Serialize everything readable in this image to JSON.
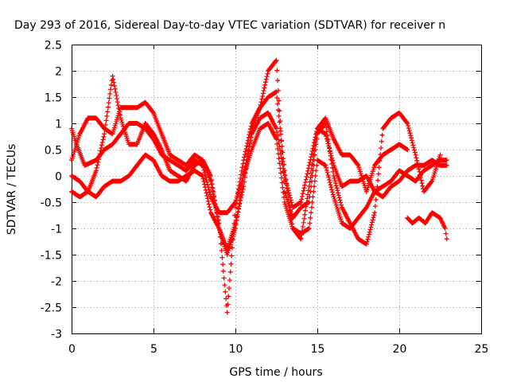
{
  "chart_data": {
    "type": "scatter",
    "title": "Day 293 of 2016, Sidereal Day-to-day VTEC variation (SDTVAR) for receiver n",
    "xlabel": "GPS time / hours",
    "ylabel": "SDTVAR / TECUs",
    "xlim": [
      0,
      25
    ],
    "ylim": [
      -3,
      2.5
    ],
    "xticks": [
      "0",
      "5",
      "10",
      "15",
      "20",
      "25"
    ],
    "yticks": [
      "2.5",
      "2",
      "1.5",
      "1",
      "0.5",
      "0",
      "-0.5",
      "-1",
      "-1.5",
      "-2",
      "-2.5",
      "-3"
    ],
    "grid": true,
    "marker": "+",
    "color": "#ff0000",
    "series": [
      {
        "name": "trace-1",
        "points": [
          [
            0,
            0.9
          ],
          [
            0.3,
            0.6
          ],
          [
            0.8,
            0.2
          ],
          [
            1.5,
            0.3
          ],
          [
            2,
            0.5
          ],
          [
            2.5,
            0.6
          ],
          [
            3,
            0.8
          ],
          [
            3.5,
            1.0
          ],
          [
            4,
            1.0
          ],
          [
            4.5,
            0.9
          ],
          [
            5,
            0.7
          ],
          [
            5.5,
            0.4
          ],
          [
            6,
            0.3
          ],
          [
            6.5,
            0.2
          ],
          [
            7,
            0.1
          ],
          [
            7.5,
            0.3
          ],
          [
            8,
            0.2
          ],
          [
            8.5,
            -0.4
          ],
          [
            9,
            -0.7
          ],
          [
            9.5,
            -0.7
          ],
          [
            10,
            -0.5
          ],
          [
            10.5,
            0.0
          ],
          [
            11,
            0.8
          ],
          [
            11.5,
            1.1
          ],
          [
            12,
            1.2
          ],
          [
            12.5,
            0.9
          ],
          [
            13,
            0.0
          ],
          [
            13.5,
            -0.6
          ],
          [
            14,
            -0.5
          ],
          [
            14.5,
            0.2
          ],
          [
            15,
            0.9
          ],
          [
            15.5,
            0.8
          ],
          [
            16,
            0.2
          ],
          [
            16.5,
            -0.2
          ],
          [
            17,
            -0.1
          ],
          [
            17.5,
            -0.1
          ],
          [
            18,
            0.0
          ],
          [
            18.5,
            -0.3
          ],
          [
            19,
            -0.2
          ],
          [
            19.5,
            -0.1
          ],
          [
            20,
            0.1
          ],
          [
            20.5,
            0.0
          ],
          [
            21,
            -0.1
          ],
          [
            21.5,
            0.1
          ],
          [
            22,
            0.2
          ],
          [
            22.5,
            0.3
          ],
          [
            22.9,
            0.3
          ]
        ]
      },
      {
        "name": "trace-2",
        "points": [
          [
            0,
            0.3
          ],
          [
            0.5,
            0.8
          ],
          [
            1,
            1.1
          ],
          [
            1.5,
            1.1
          ],
          [
            2,
            0.9
          ],
          [
            2.5,
            0.8
          ],
          [
            3,
            1.3
          ],
          [
            3.5,
            1.3
          ],
          [
            4,
            1.3
          ],
          [
            4.5,
            1.4
          ],
          [
            5,
            1.2
          ],
          [
            5.5,
            0.8
          ],
          [
            6,
            0.4
          ],
          [
            6.5,
            0.3
          ],
          [
            7,
            0.2
          ],
          [
            7.5,
            0.4
          ],
          [
            8,
            0.3
          ],
          [
            8.5,
            0.0
          ],
          [
            9,
            -1.0
          ],
          [
            9.5,
            -1.4
          ],
          [
            10,
            -0.9
          ],
          [
            10.5,
            -0.2
          ],
          [
            11,
            0.9
          ],
          [
            11.5,
            1.3
          ],
          [
            12,
            1.5
          ],
          [
            12.5,
            1.6
          ],
          [
            13,
            0.1
          ],
          [
            13.5,
            -1.0
          ],
          [
            14,
            -1.2
          ],
          [
            14.5,
            -0.2
          ],
          [
            15,
            0.9
          ],
          [
            15.5,
            1.1
          ],
          [
            16,
            0.7
          ],
          [
            16.5,
            0.4
          ],
          [
            17,
            0.4
          ],
          [
            17.5,
            0.2
          ],
          [
            18,
            -0.3
          ],
          [
            18.5,
            0.2
          ],
          [
            19,
            0.4
          ],
          [
            19.5,
            0.5
          ],
          [
            20,
            0.6
          ],
          [
            20.5,
            0.5
          ]
        ]
      },
      {
        "name": "trace-3",
        "points": [
          [
            0,
            -0.3
          ],
          [
            0.5,
            -0.4
          ],
          [
            1,
            -0.3
          ],
          [
            1.5,
            0.1
          ],
          [
            2,
            0.8
          ],
          [
            2.5,
            1.9
          ],
          [
            3,
            1.1
          ],
          [
            3.5,
            0.6
          ],
          [
            4,
            0.6
          ],
          [
            4.5,
            1.0
          ],
          [
            5,
            0.8
          ],
          [
            5.5,
            0.5
          ],
          [
            6,
            0.1
          ],
          [
            6.5,
            0.0
          ],
          [
            7,
            -0.1
          ],
          [
            7.5,
            0.2
          ],
          [
            8,
            0.3
          ],
          [
            8.5,
            -0.1
          ],
          [
            9,
            -0.9
          ],
          [
            9.5,
            -2.6
          ],
          [
            10,
            -0.6
          ],
          [
            10.5,
            0.3
          ],
          [
            11,
            1.0
          ],
          [
            11.5,
            1.3
          ],
          [
            12,
            2.0
          ],
          [
            12.5,
            2.2
          ],
          [
            13,
            -0.3
          ],
          [
            13.5,
            -0.8
          ],
          [
            14,
            -0.6
          ],
          [
            14.5,
            -0.5
          ],
          [
            15,
            0.8
          ],
          [
            15.5,
            1.0
          ],
          [
            16,
            0.0
          ],
          [
            16.5,
            -0.6
          ],
          [
            17,
            -0.9
          ],
          [
            17.5,
            -1.2
          ],
          [
            18,
            -1.3
          ],
          [
            18.5,
            -0.7
          ],
          [
            19,
            0.9
          ],
          [
            19.5,
            1.1
          ],
          [
            20,
            1.2
          ],
          [
            20.5,
            1.0
          ],
          [
            21,
            0.4
          ],
          [
            21.5,
            -0.3
          ],
          [
            22,
            -0.1
          ],
          [
            22.5,
            0.4
          ]
        ]
      },
      {
        "name": "trace-4",
        "points": [
          [
            0,
            0.0
          ],
          [
            0.5,
            -0.1
          ],
          [
            1,
            -0.3
          ],
          [
            1.5,
            -0.4
          ],
          [
            2,
            -0.2
          ],
          [
            2.5,
            -0.1
          ],
          [
            3,
            -0.1
          ],
          [
            3.5,
            0.0
          ],
          [
            4,
            0.2
          ],
          [
            4.5,
            0.4
          ],
          [
            5,
            0.3
          ],
          [
            5.5,
            0.0
          ],
          [
            6,
            -0.1
          ],
          [
            6.5,
            -0.1
          ],
          [
            7,
            0.0
          ],
          [
            7.5,
            0.1
          ],
          [
            8,
            0.0
          ],
          [
            8.5,
            -0.7
          ],
          [
            9,
            -1.0
          ],
          [
            9.5,
            -1.5
          ],
          [
            10,
            -1.0
          ],
          [
            10.5,
            0.0
          ],
          [
            11,
            0.5
          ],
          [
            11.5,
            0.9
          ],
          [
            12,
            1.0
          ],
          [
            12.5,
            0.7
          ],
          [
            13,
            -0.5
          ],
          [
            13.5,
            -1.0
          ],
          [
            14,
            -1.1
          ],
          [
            14.5,
            -1.0
          ],
          [
            15,
            0.3
          ],
          [
            15.5,
            0.2
          ],
          [
            16,
            -0.4
          ],
          [
            16.5,
            -0.9
          ],
          [
            17,
            -1.0
          ],
          [
            17.5,
            -0.8
          ],
          [
            18,
            -0.6
          ],
          [
            18.5,
            -0.3
          ],
          [
            19,
            -0.4
          ],
          [
            19.5,
            -0.2
          ],
          [
            20,
            -0.1
          ],
          [
            20.5,
            0.1
          ],
          [
            21,
            0.2
          ],
          [
            21.5,
            0.2
          ],
          [
            22,
            0.3
          ],
          [
            22.5,
            0.2
          ],
          [
            22.9,
            0.2
          ]
        ]
      },
      {
        "name": "trace-5",
        "points": [
          [
            20.5,
            -0.8
          ],
          [
            20.8,
            -0.9
          ],
          [
            21.2,
            -0.8
          ],
          [
            21.6,
            -0.9
          ],
          [
            22,
            -0.7
          ],
          [
            22.5,
            -0.8
          ],
          [
            22.8,
            -1.0
          ],
          [
            22.9,
            -1.2
          ]
        ]
      }
    ]
  }
}
